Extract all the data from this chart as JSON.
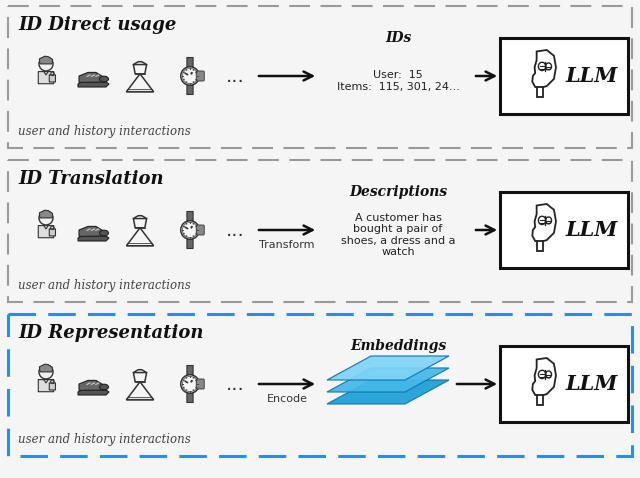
{
  "sections": [
    {
      "title": "ID Direct usage",
      "border_color": "#999999",
      "border_lw": 1.5,
      "arrow_label": "",
      "mid_title": "IDs",
      "mid_text": "User:  15\nItems:  115, 301, 24...",
      "bottom_label": "user and history interactions",
      "is_blue": false
    },
    {
      "title": "ID Translation",
      "border_color": "#999999",
      "border_lw": 1.5,
      "arrow_label": "Transform",
      "mid_title": "Descriptions",
      "mid_text": "A customer has\nbought a pair of\nshoes, a dress and a\nwatch",
      "bottom_label": "user and history interactions",
      "is_blue": false
    },
    {
      "title": "ID Representation",
      "border_color": "#1e90ff",
      "border_lw": 2.2,
      "arrow_label": "Encode",
      "mid_title": "Embeddings",
      "mid_text": "",
      "bottom_label": "user and history interactions",
      "is_blue": true
    }
  ],
  "bg_color": "#f5f5f5",
  "arrow_color": "#111111",
  "embed_colors_bottom_to_top": [
    "#1b9fd6",
    "#44b8e8",
    "#7fd3f5"
  ],
  "llm_text": "LLM",
  "person_emoji": "👤",
  "shoe_emoji": "👟",
  "dress_emoji": "👗",
  "watch_emoji": "⌚"
}
